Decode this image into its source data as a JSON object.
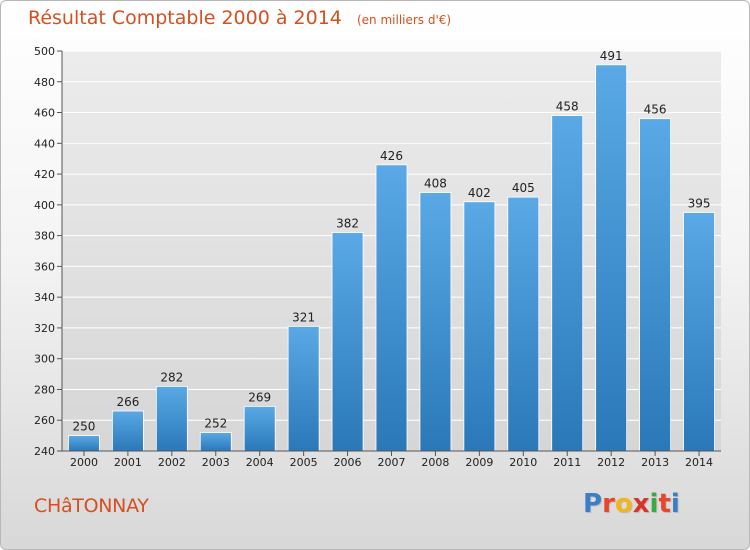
{
  "header": {
    "title": "Résultat Comptable 2000 à 2014",
    "subtitle": "(en milliers d'€)"
  },
  "footer": {
    "city": "CHâTONNAY",
    "brand": "Proxiti",
    "brand_colors": [
      "#3a7fc4",
      "#e8452c",
      "#f2b61b",
      "#d8342a",
      "#39a845",
      "#e8452c",
      "#3a7fc4"
    ]
  },
  "colors": {
    "bar_top": "#5aa9e6",
    "bar_bottom": "#2a78b8",
    "grid": "#ffffff",
    "title": "#d4501f"
  },
  "chart_data": {
    "type": "bar",
    "categories": [
      "2000",
      "2001",
      "2002",
      "2003",
      "2004",
      "2005",
      "2006",
      "2007",
      "2008",
      "2009",
      "2010",
      "2011",
      "2012",
      "2013",
      "2014"
    ],
    "values": [
      250,
      266,
      282,
      252,
      269,
      321,
      382,
      426,
      408,
      402,
      405,
      458,
      491,
      456,
      395
    ],
    "ylim": [
      240,
      500
    ],
    "yticks": [
      240,
      260,
      280,
      300,
      320,
      340,
      360,
      380,
      400,
      420,
      440,
      460,
      480,
      500
    ],
    "grid": true,
    "xlabel": "",
    "ylabel": ""
  }
}
